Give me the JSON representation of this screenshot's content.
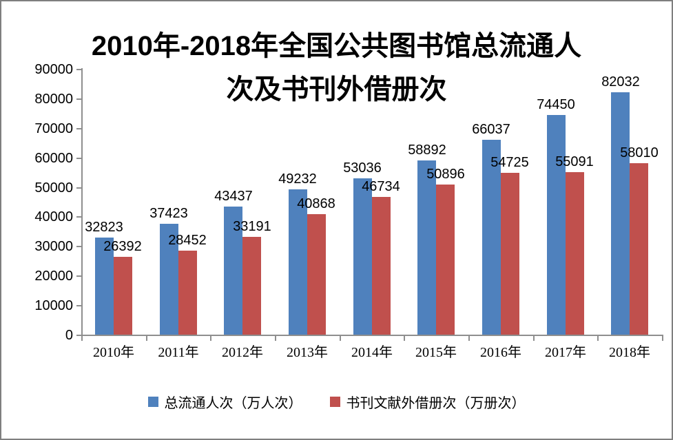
{
  "title_line1": "2010年-2018年全国公共图书馆总流通人",
  "title_line2": "次及书刊外借册次",
  "chart_data": {
    "type": "bar",
    "title": "2010年-2018年全国公共图书馆总流通人次及书刊外借册次",
    "categories": [
      "2010年",
      "2011年",
      "2012年",
      "2013年",
      "2014年",
      "2015年",
      "2016年",
      "2017年",
      "2018年"
    ],
    "series": [
      {
        "name": "总流通人次（万人次）",
        "color": "#4F81BD",
        "values": [
          32823,
          37423,
          43437,
          49232,
          53036,
          58892,
          66037,
          74450,
          82032
        ]
      },
      {
        "name": "书刊文献外借册次（万册次）",
        "color": "#C0504D",
        "values": [
          26392,
          28452,
          33191,
          40868,
          46734,
          50896,
          54725,
          55091,
          58010
        ]
      }
    ],
    "xlabel": "",
    "ylabel": "",
    "ylim": [
      0,
      90000
    ],
    "yticks": [
      0,
      10000,
      20000,
      30000,
      40000,
      50000,
      60000,
      70000,
      80000,
      90000
    ],
    "grid": false,
    "legend_position": "bottom",
    "data_labels": true
  },
  "colors": {
    "axis": "#8e8e8e",
    "border": "#7f7f7f",
    "text": "#000000",
    "background": "#ffffff"
  }
}
